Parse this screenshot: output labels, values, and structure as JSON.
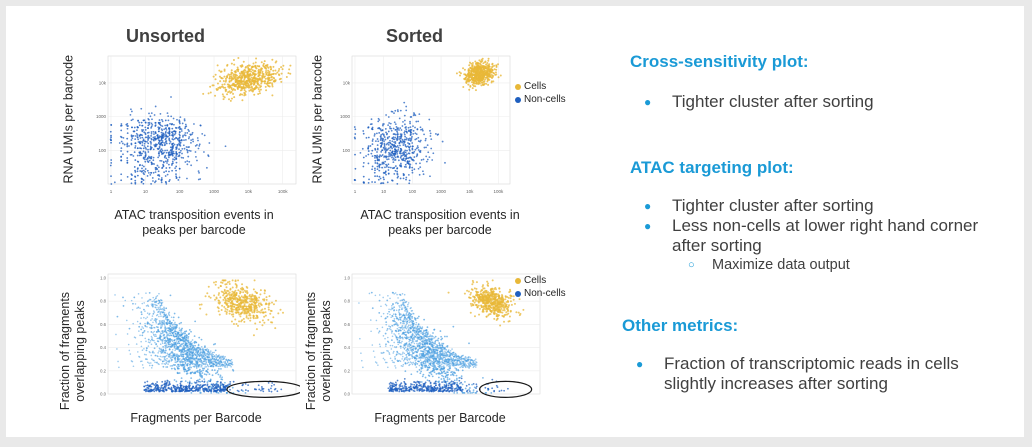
{
  "titles": {
    "unsorted": "Unsorted",
    "sorted": "Sorted"
  },
  "axis": {
    "top_ylabel": "RNA UMIs per barcode",
    "top_xlabel_line1": "ATAC transposition events in",
    "top_xlabel_line2": "peaks per barcode",
    "bottom_ylabel_line1": "Fraction of fragments",
    "bottom_ylabel_line2": "overlapping peaks",
    "bottom_xlabel": "Fragments per Barcode"
  },
  "legend": {
    "cells": "Cells",
    "noncells": "Non-cells"
  },
  "colors": {
    "cells": "#e8b838",
    "noncells": "#1f5fbf",
    "noncells_light": "#4a9ee0",
    "accent": "#1a9ad6",
    "text": "#404040"
  },
  "right_panel": {
    "section1": {
      "heading": "Cross-sensitivity plot:",
      "bullets": [
        "Tighter cluster after sorting"
      ]
    },
    "section2": {
      "heading": "ATAC targeting plot:",
      "bullets": [
        "Tighter cluster after sorting",
        "Less non-cells at lower right hand corner after sorting"
      ],
      "sub_bullet": "Maximize  data output"
    },
    "section3": {
      "heading": "Other metrics:",
      "bullets": [
        "Fraction of transcriptomic reads in cells slightly increases after sorting"
      ]
    }
  },
  "chart_data": [
    {
      "type": "scatter",
      "title": "Unsorted",
      "xlabel": "ATAC transposition events in peaks per barcode",
      "ylabel": "RNA UMIs per barcode",
      "x_scale": "log",
      "y_scale": "log",
      "x_ticks": [
        "1",
        "10",
        "100",
        "1000",
        "10k",
        "100k"
      ],
      "y_ticks": [
        "100",
        "1000",
        "10k"
      ],
      "series": [
        {
          "name": "Cells",
          "cluster": {
            "x_center": 20000,
            "y_center": 20000,
            "spread": "wide"
          }
        },
        {
          "name": "Non-cells",
          "cluster": {
            "x_center": 30,
            "y_center": 200,
            "spread": "wide"
          }
        }
      ]
    },
    {
      "type": "scatter",
      "title": "Sorted",
      "xlabel": "ATAC transposition events in peaks per barcode",
      "ylabel": "RNA UMIs per barcode",
      "x_scale": "log",
      "y_scale": "log",
      "x_ticks": [
        "1",
        "10",
        "100",
        "1000",
        "10k",
        "100k"
      ],
      "y_ticks": [
        "100",
        "1000",
        "10k"
      ],
      "legend_position": "right",
      "series": [
        {
          "name": "Cells",
          "cluster": {
            "x_center": 30000,
            "y_center": 25000,
            "spread": "tight"
          }
        },
        {
          "name": "Non-cells",
          "cluster": {
            "x_center": 40,
            "y_center": 300,
            "spread": "wide"
          }
        }
      ]
    },
    {
      "type": "scatter",
      "xlabel": "Fragments per Barcode",
      "ylabel": "Fraction of fragments overlapping peaks",
      "x_scale": "log",
      "y_ticks": [
        "0.0",
        "0.2",
        "0.4",
        "0.6",
        "0.8",
        "1.0"
      ],
      "annotation": "circled non-cells at lower right",
      "series": [
        {
          "name": "Cells",
          "cluster": {
            "x_center": 15000,
            "y_center": 0.75,
            "spread": "wide"
          }
        },
        {
          "name": "Non-cells",
          "cluster": {
            "x_center": 100,
            "y_center": 0.3,
            "spread": "wide"
          }
        }
      ]
    },
    {
      "type": "scatter",
      "xlabel": "Fragments per Barcode",
      "ylabel": "Fraction of fragments overlapping peaks",
      "x_scale": "log",
      "y_ticks": [
        "0.0",
        "0.2",
        "0.4",
        "0.6",
        "0.8",
        "1.0"
      ],
      "legend_position": "top-right",
      "annotation": "fewer circled non-cells at lower right",
      "series": [
        {
          "name": "Cells",
          "cluster": {
            "x_center": 20000,
            "y_center": 0.8,
            "spread": "tight"
          }
        },
        {
          "name": "Non-cells",
          "cluster": {
            "x_center": 100,
            "y_center": 0.35,
            "spread": "wide"
          }
        }
      ]
    }
  ]
}
